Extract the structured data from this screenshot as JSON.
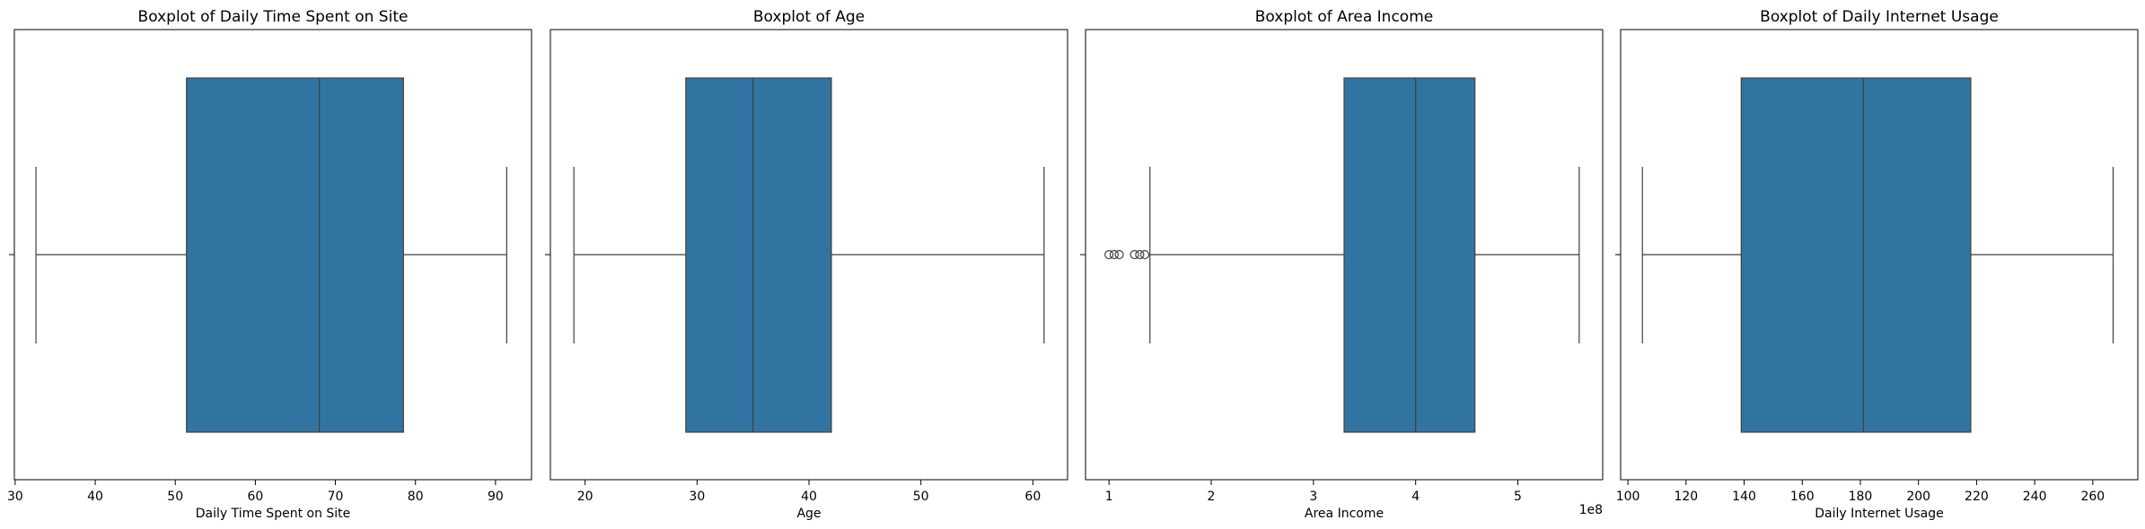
{
  "chart_data": [
    {
      "type": "box",
      "title": "Boxplot of Daily Time Spent on Site",
      "xlabel": "Daily Time Spent on Site",
      "xlim": [
        29.9,
        94.5
      ],
      "xticks": [
        30,
        40,
        50,
        60,
        70,
        80,
        90
      ],
      "tick_labels": [
        "30",
        "40",
        "50",
        "60",
        "70",
        "80",
        "90"
      ],
      "offset_label": "",
      "whisker_low": 32.6,
      "q1": 51.4,
      "median": 68.0,
      "q3": 78.5,
      "whisker_high": 91.4,
      "outliers": [],
      "box_color": "#3274a1",
      "line_color": "#3f3f3f"
    },
    {
      "type": "box",
      "title": "Boxplot of Age",
      "xlabel": "Age",
      "xlim": [
        16.9,
        63.1
      ],
      "xticks": [
        20,
        30,
        40,
        50,
        60
      ],
      "tick_labels": [
        "20",
        "30",
        "40",
        "50",
        "60"
      ],
      "offset_label": "",
      "whisker_low": 19,
      "q1": 29,
      "median": 35,
      "q3": 42,
      "whisker_high": 61,
      "outliers": [],
      "box_color": "#3274a1",
      "line_color": "#3f3f3f"
    },
    {
      "type": "box",
      "title": "Boxplot of Area Income",
      "xlabel": "Area Income",
      "xlim": [
        0.77,
        5.83
      ],
      "xticks": [
        1,
        2,
        3,
        4,
        5
      ],
      "tick_labels": [
        "1",
        "2",
        "3",
        "4",
        "5"
      ],
      "offset_label": "1e8",
      "whisker_low": 1.4,
      "q1": 3.3,
      "median": 4.0,
      "q3": 4.58,
      "whisker_high": 5.6,
      "outliers": [
        1.0,
        1.05,
        1.1,
        1.25,
        1.3,
        1.35
      ],
      "box_color": "#3274a1",
      "line_color": "#3f3f3f"
    },
    {
      "type": "box",
      "title": "Boxplot of Daily Internet Usage",
      "xlabel": "Daily Internet Usage",
      "xlim": [
        97.5,
        275.5
      ],
      "xticks": [
        100,
        120,
        140,
        160,
        180,
        200,
        220,
        240,
        260
      ],
      "tick_labels": [
        "100",
        "120",
        "140",
        "160",
        "180",
        "200",
        "220",
        "240",
        "260"
      ],
      "offset_label": "",
      "whisker_low": 105,
      "q1": 139,
      "median": 181,
      "q3": 218,
      "whisker_high": 267,
      "outliers": [],
      "box_color": "#3274a1",
      "line_color": "#3f3f3f"
    }
  ]
}
